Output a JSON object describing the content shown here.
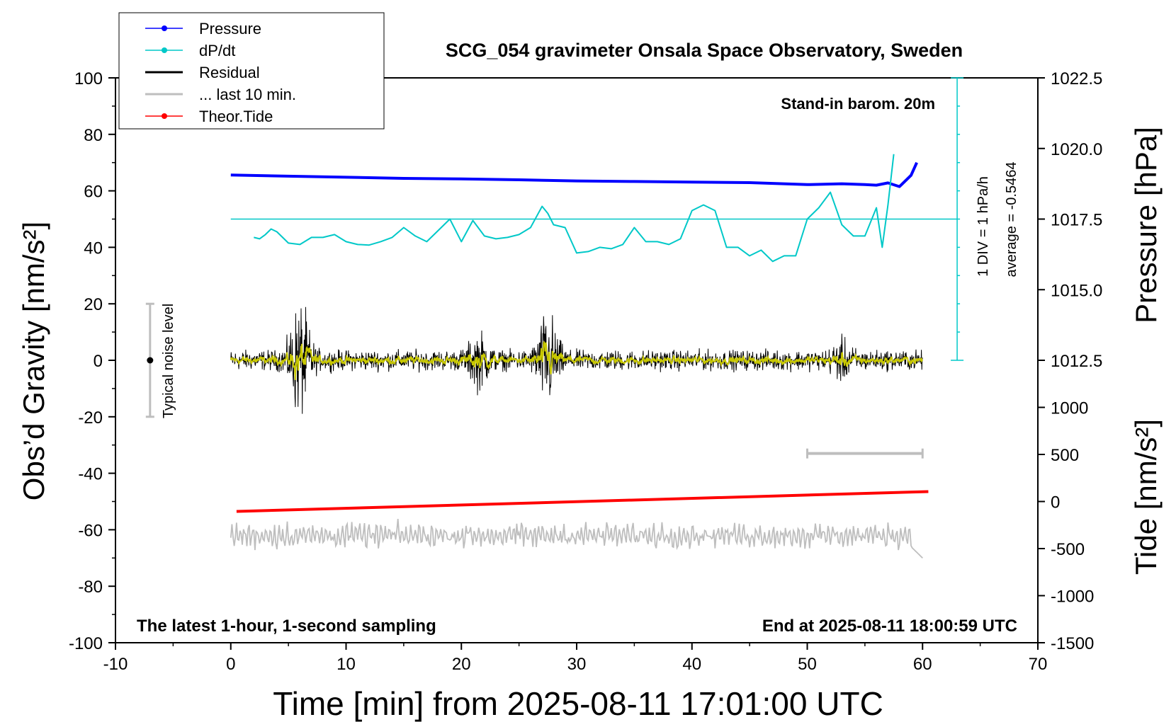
{
  "chart_data": {
    "type": "line",
    "title": "SCG_054 gravimeter Onsala Space Observatory, Sweden",
    "xlabel": "Time [min] from 2025-08-11 17:01:00 UTC",
    "ylabel_left": "Obs’d Gravity [nm/s²]",
    "ylabel_pressure": "Pressure [hPa]",
    "ylabel_tide": "Tide [nm/s²]",
    "xlim": [
      -10,
      70
    ],
    "ylim_left": [
      -100,
      100
    ],
    "x_ticks": [
      "-10",
      "0",
      "10",
      "20",
      "30",
      "40",
      "50",
      "60",
      "70"
    ],
    "y_ticks_left": [
      "-100",
      "-80",
      "-60",
      "-40",
      "-20",
      "0",
      "20",
      "40",
      "60",
      "80",
      "100"
    ],
    "pressure_ticks": [
      "1012.5",
      "1015.0",
      "1017.5",
      "1020.0",
      "1022.5"
    ],
    "tide_ticks": [
      "-1500",
      "-1000",
      "-500",
      "0",
      "500",
      "1000"
    ],
    "grid": false,
    "legend_position": "top-left",
    "legend": [
      {
        "name": "Pressure",
        "color": "#0000ff",
        "marker": "dot"
      },
      {
        "name": "dP/dt",
        "color": "#00c8c8",
        "marker": "dot"
      },
      {
        "name": "Residual",
        "color": "#000000",
        "marker": "line"
      },
      {
        "name": "... last 10 min.",
        "color": "#bebebe",
        "marker": "line"
      },
      {
        "name": "Theor.Tide",
        "color": "#ff0000",
        "marker": "dot"
      }
    ],
    "annotations": {
      "barometer": "Stand-in barom. 20m",
      "div_label": "1 DIV = 1 hPa/h",
      "average": "average = -0.5464",
      "noise": "Typical noise level",
      "latest": "The latest 1-hour, 1-second sampling",
      "end": "End at 2025-08-11 18:00:59 UTC"
    },
    "noise_bar": {
      "x": -7,
      "y_range": [
        -20,
        20
      ]
    },
    "last10_bar": {
      "x_range": [
        50,
        60
      ]
    },
    "dpdt_reference_y": 50,
    "series": [
      {
        "name": "Pressure",
        "color": "#0000ff",
        "axis": "left",
        "x": [
          0,
          5,
          10,
          15,
          20,
          25,
          30,
          35,
          40,
          45,
          50,
          53,
          55,
          56,
          57,
          58,
          59,
          59.5
        ],
        "y": [
          65.6,
          65.2,
          64.8,
          64.4,
          64.2,
          63.9,
          63.5,
          63.3,
          63.1,
          62.9,
          62.2,
          62.5,
          62.2,
          62.0,
          62.8,
          61.5,
          65.5,
          70.0
        ]
      },
      {
        "name": "dP/dt",
        "color": "#00c8c8",
        "axis": "left",
        "x": [
          2,
          2.5,
          3,
          3.5,
          4,
          5,
          6,
          7,
          8,
          9,
          10,
          11,
          12,
          13,
          14,
          15,
          16,
          17,
          18,
          19,
          20,
          21,
          22,
          23,
          24,
          25,
          26,
          27,
          27.5,
          28,
          29,
          30,
          31,
          32,
          33,
          34,
          35,
          36,
          37,
          38,
          39,
          40,
          41,
          42,
          43,
          44,
          45,
          46,
          47,
          48,
          49,
          50,
          51,
          52,
          53,
          54,
          55,
          56,
          56.5,
          57,
          57.5
        ],
        "y": [
          43.5,
          43,
          44.5,
          46.5,
          45.5,
          41.5,
          41,
          43.5,
          43.5,
          44.5,
          42,
          41,
          40.8,
          42,
          43.5,
          47,
          44,
          42,
          46,
          50,
          42,
          49.5,
          44,
          43,
          43.5,
          44.5,
          47,
          54.5,
          52,
          48,
          47,
          38,
          38.5,
          40,
          39.5,
          41,
          47,
          42,
          42,
          41,
          43,
          53,
          55,
          53,
          40,
          40,
          37,
          39,
          35,
          37,
          37,
          50,
          54,
          59.5,
          48,
          44,
          44,
          54,
          40,
          55,
          73
        ]
      },
      {
        "name": "Theor.Tide",
        "color": "#ff0000",
        "axis": "left",
        "x": [
          0.5,
          60.5
        ],
        "y": [
          -53.5,
          -46.5
        ]
      }
    ],
    "residual": {
      "x_range": [
        0,
        60
      ],
      "baseline": 0,
      "bursts": [
        [
          6,
          12
        ],
        [
          27.5,
          10
        ],
        [
          21.5,
          5
        ],
        [
          53,
          3
        ]
      ]
    },
    "last10": {
      "x_range": [
        0,
        60
      ],
      "baseline": -62,
      "end_value": -70
    }
  }
}
